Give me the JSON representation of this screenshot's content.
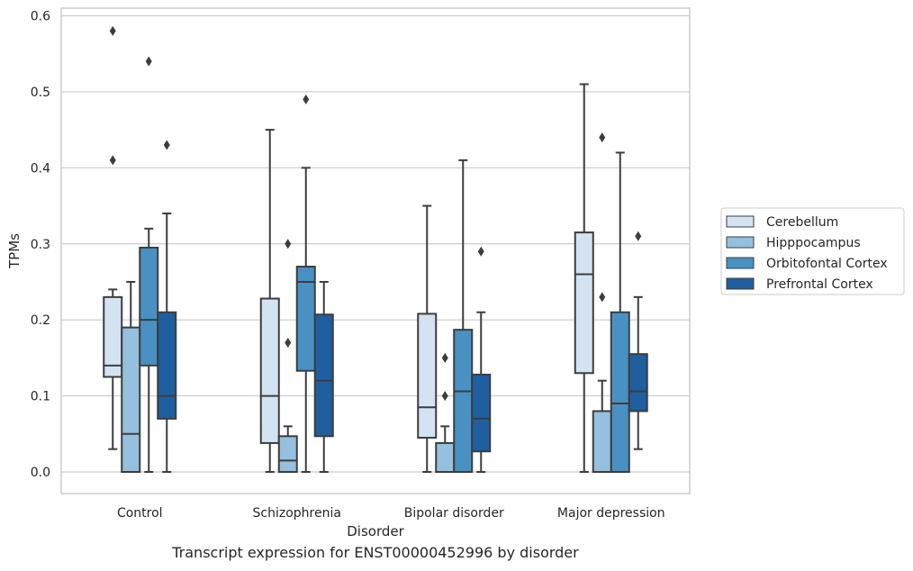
{
  "caption": "Transcript expression for ENST00000452996 by disorder",
  "chart_data": {
    "type": "box",
    "xlabel": "Disorder",
    "ylabel": "TPMs",
    "ylim": [
      -0.03,
      0.615
    ],
    "yticks": [
      "0.0",
      "0.1",
      "0.2",
      "0.3",
      "0.4",
      "0.5",
      "0.6"
    ],
    "grid": "horizontal",
    "legend_position": "right",
    "categories": [
      "Control",
      "Schizophrenia",
      "Bipolar disorder",
      "Major depression"
    ],
    "series": [
      {
        "name": "Cerebellum",
        "color": "#d3e3f2",
        "boxes": [
          {
            "whislo": 0.03,
            "q1": 0.125,
            "med": 0.14,
            "q3": 0.23,
            "whishi": 0.24,
            "fliers": [
              0.41,
              0.58
            ]
          },
          {
            "whislo": 0.0,
            "q1": 0.038,
            "med": 0.1,
            "q3": 0.228,
            "whishi": 0.45,
            "fliers": []
          },
          {
            "whislo": 0.0,
            "q1": 0.045,
            "med": 0.085,
            "q3": 0.208,
            "whishi": 0.35,
            "fliers": []
          },
          {
            "whislo": 0.0,
            "q1": 0.13,
            "med": 0.26,
            "q3": 0.315,
            "whishi": 0.51,
            "fliers": []
          }
        ]
      },
      {
        "name": "Hipppocampus",
        "color": "#95c0de",
        "boxes": [
          {
            "whislo": 0.0,
            "q1": 0.0,
            "med": 0.05,
            "q3": 0.19,
            "whishi": 0.25,
            "fliers": []
          },
          {
            "whislo": 0.0,
            "q1": 0.0,
            "med": 0.015,
            "q3": 0.047,
            "whishi": 0.06,
            "fliers": [
              0.17,
              0.3
            ]
          },
          {
            "whislo": 0.0,
            "q1": 0.0,
            "med": 0.0,
            "q3": 0.038,
            "whishi": 0.06,
            "fliers": [
              0.1,
              0.15
            ]
          },
          {
            "whislo": 0.0,
            "q1": 0.0,
            "med": 0.0,
            "q3": 0.08,
            "whishi": 0.12,
            "fliers": [
              0.23,
              0.44
            ]
          }
        ]
      },
      {
        "name": "Orbitofontal Cortex",
        "color": "#4a91c3",
        "boxes": [
          {
            "whislo": 0.0,
            "q1": 0.14,
            "med": 0.2,
            "q3": 0.295,
            "whishi": 0.32,
            "fliers": [
              0.54
            ]
          },
          {
            "whislo": 0.0,
            "q1": 0.133,
            "med": 0.25,
            "q3": 0.27,
            "whishi": 0.4,
            "fliers": [
              0.49
            ]
          },
          {
            "whislo": 0.0,
            "q1": 0.0,
            "med": 0.106,
            "q3": 0.187,
            "whishi": 0.41,
            "fliers": []
          },
          {
            "whislo": 0.0,
            "q1": 0.0,
            "med": 0.09,
            "q3": 0.21,
            "whishi": 0.42,
            "fliers": []
          }
        ]
      },
      {
        "name": "Prefrontal Cortex",
        "color": "#1f5e9f",
        "boxes": [
          {
            "whislo": 0.0,
            "q1": 0.07,
            "med": 0.1,
            "q3": 0.21,
            "whishi": 0.34,
            "fliers": [
              0.43
            ]
          },
          {
            "whislo": 0.0,
            "q1": 0.047,
            "med": 0.12,
            "q3": 0.207,
            "whishi": 0.25,
            "fliers": []
          },
          {
            "whislo": 0.0,
            "q1": 0.027,
            "med": 0.07,
            "q3": 0.128,
            "whishi": 0.21,
            "fliers": [
              0.29
            ]
          },
          {
            "whislo": 0.03,
            "q1": 0.08,
            "med": 0.106,
            "q3": 0.155,
            "whishi": 0.23,
            "fliers": [
              0.31
            ]
          }
        ]
      }
    ],
    "colors": {
      "grid": "#cccccc",
      "frame": "#cccccc",
      "line": "#3d3d3d"
    }
  }
}
